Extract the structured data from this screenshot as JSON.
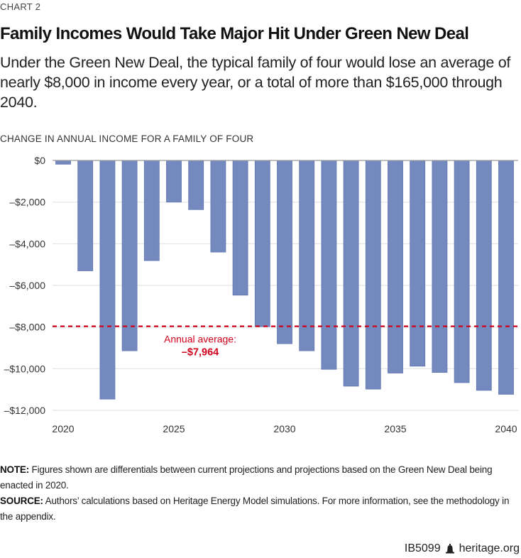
{
  "header": {
    "chart_number": "CHART 2",
    "title": "Family Incomes Would Take Major Hit Under Green New Deal",
    "subtitle": "Under the Green New Deal, the typical family of four would lose an average of nearly $8,000 in income every year, or a total of more than $165,000 through 2040."
  },
  "chart_data": {
    "type": "bar",
    "title": "Family Incomes Would Take Major Hit Under Green New Deal",
    "ylabel": "CHANGE IN ANNUAL INCOME FOR A FAMILY OF FOUR",
    "xlabel": "",
    "categories": [
      2020,
      2021,
      2022,
      2023,
      2024,
      2025,
      2026,
      2027,
      2028,
      2029,
      2030,
      2031,
      2032,
      2033,
      2034,
      2035,
      2036,
      2037,
      2038,
      2039,
      2040
    ],
    "values": [
      -180,
      -5300,
      -11460,
      -9140,
      -4810,
      -2000,
      -2360,
      -4400,
      -6470,
      -7980,
      -8800,
      -9140,
      -10030,
      -10840,
      -10980,
      -10210,
      -9880,
      -10180,
      -10670,
      -11040,
      -11230
    ],
    "ylim": [
      -12000,
      0
    ],
    "yticks": [
      0,
      -2000,
      -4000,
      -6000,
      -8000,
      -10000,
      -12000
    ],
    "ytick_labels": [
      "$0",
      "–$2,000",
      "–$4,000",
      "–$6,000",
      "–$8,000",
      "–$10,000",
      "–$12,000"
    ],
    "xtick_labels": [
      "2020",
      "2025",
      "2030",
      "2035",
      "2040"
    ],
    "xtick_values": [
      2020,
      2025,
      2030,
      2035,
      2040
    ],
    "grid": true,
    "legend": "none",
    "bar_color": "#7489be",
    "bar_edge_color": "#5f76b3",
    "reference_line": {
      "value": -7964,
      "style": "dashed",
      "color": "#d0021b",
      "label_line1": "Annual average:",
      "label_line2": "–$7,964"
    }
  },
  "notes": {
    "note_label": "NOTE:",
    "note_text": " Figures shown are differentials between current projections and projections based on the Green New Deal being enacted in 2020.",
    "source_label": "SOURCE:",
    "source_text": " Authors’ calculations based on Heritage Energy Model simulations. For more information, see the methodology in the appendix."
  },
  "footer": {
    "report_id": "IB5099",
    "icon": "liberty-bell-icon",
    "site": "heritage.org"
  }
}
